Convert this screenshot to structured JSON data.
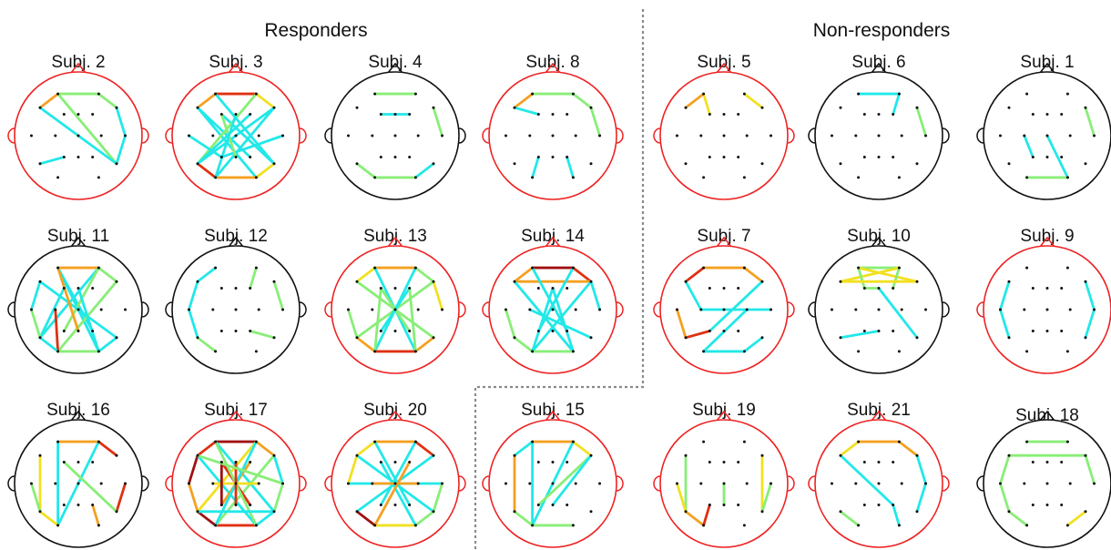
{
  "groups": [
    {
      "title": "Responders"
    },
    {
      "title": "Non-responders"
    }
  ],
  "colors": {
    "red_head": "#ee2222",
    "black_head": "#111111",
    "cyan": "#22e8e8",
    "green": "#88ee77",
    "yellow": "#f2e020",
    "orange": "#f5a020",
    "red": "#e03010",
    "dark_red": "#a01010"
  },
  "electrodes": [
    [
      -0.4,
      -0.82
    ],
    [
      0.4,
      -0.82
    ],
    [
      -0.75,
      -0.55
    ],
    [
      -0.28,
      -0.42
    ],
    [
      0.0,
      -0.42
    ],
    [
      0.28,
      -0.42
    ],
    [
      0.75,
      -0.55
    ],
    [
      -0.92,
      0.0
    ],
    [
      -0.45,
      0.0
    ],
    [
      0.0,
      0.0
    ],
    [
      0.45,
      0.0
    ],
    [
      0.92,
      0.0
    ],
    [
      -0.75,
      0.55
    ],
    [
      -0.28,
      0.42
    ],
    [
      0.0,
      0.42
    ],
    [
      0.28,
      0.42
    ],
    [
      0.75,
      0.55
    ],
    [
      -0.4,
      0.82
    ],
    [
      0.4,
      0.82
    ]
  ],
  "subjects": [
    {
      "label": "Subj. 2",
      "head": "red",
      "edges": [
        [
          0,
          1,
          "green"
        ],
        [
          0,
          2,
          "orange"
        ],
        [
          0,
          16,
          "green"
        ],
        [
          2,
          16,
          "cyan"
        ],
        [
          1,
          6,
          "green"
        ],
        [
          6,
          11,
          "cyan"
        ],
        [
          11,
          16,
          "cyan"
        ],
        [
          12,
          13,
          "cyan"
        ]
      ]
    },
    {
      "label": "Subj. 3",
      "head": "red",
      "edges": [
        [
          0,
          1,
          "red"
        ],
        [
          0,
          2,
          "orange"
        ],
        [
          1,
          6,
          "yellow"
        ],
        [
          2,
          15,
          "cyan"
        ],
        [
          2,
          18,
          "cyan"
        ],
        [
          3,
          16,
          "cyan"
        ],
        [
          6,
          12,
          "cyan"
        ],
        [
          6,
          17,
          "cyan"
        ],
        [
          1,
          12,
          "green"
        ],
        [
          0,
          16,
          "cyan"
        ],
        [
          7,
          13,
          "cyan"
        ],
        [
          11,
          13,
          "cyan"
        ],
        [
          12,
          17,
          "red"
        ],
        [
          16,
          18,
          "yellow"
        ],
        [
          17,
          18,
          "orange"
        ],
        [
          3,
          14,
          "green"
        ],
        [
          5,
          12,
          "cyan"
        ],
        [
          4,
          17,
          "cyan"
        ]
      ]
    },
    {
      "label": "Subj. 4",
      "head": "black",
      "edges": [
        [
          0,
          1,
          "green"
        ],
        [
          3,
          5,
          "cyan"
        ],
        [
          6,
          11,
          "green"
        ],
        [
          12,
          17,
          "green"
        ],
        [
          17,
          18,
          "green"
        ],
        [
          16,
          18,
          "cyan"
        ]
      ]
    },
    {
      "label": "Subj. 8",
      "head": "red",
      "edges": [
        [
          0,
          1,
          "green"
        ],
        [
          0,
          2,
          "orange"
        ],
        [
          2,
          3,
          "cyan"
        ],
        [
          1,
          6,
          "green"
        ],
        [
          6,
          11,
          "green"
        ],
        [
          13,
          17,
          "cyan"
        ],
        [
          15,
          18,
          "cyan"
        ]
      ]
    },
    {
      "label": "Subj. 5",
      "head": "red",
      "edges": [
        [
          0,
          3,
          "yellow"
        ],
        [
          0,
          2,
          "orange"
        ],
        [
          1,
          6,
          "yellow"
        ]
      ]
    },
    {
      "label": "Subj. 6",
      "head": "black",
      "edges": [
        [
          0,
          1,
          "cyan"
        ],
        [
          1,
          5,
          "cyan"
        ],
        [
          6,
          11,
          "green"
        ]
      ]
    },
    {
      "label": "Subj. 1",
      "head": "black",
      "edges": [
        [
          6,
          11,
          "green"
        ],
        [
          8,
          13,
          "cyan"
        ],
        [
          9,
          18,
          "cyan"
        ],
        [
          17,
          18,
          "green"
        ]
      ]
    },
    {
      "label": "Subj. 11",
      "head": "black",
      "edges": [
        [
          0,
          1,
          "orange"
        ],
        [
          0,
          15,
          "cyan"
        ],
        [
          0,
          18,
          "cyan"
        ],
        [
          1,
          12,
          "cyan"
        ],
        [
          1,
          13,
          "green"
        ],
        [
          2,
          16,
          "cyan"
        ],
        [
          3,
          12,
          "cyan"
        ],
        [
          6,
          17,
          "green"
        ],
        [
          7,
          12,
          "green"
        ],
        [
          2,
          7,
          "cyan"
        ],
        [
          8,
          17,
          "red"
        ],
        [
          12,
          17,
          "cyan"
        ],
        [
          17,
          18,
          "green"
        ],
        [
          16,
          18,
          "cyan"
        ],
        [
          1,
          6,
          "green"
        ],
        [
          0,
          14,
          "orange"
        ],
        [
          4,
          18,
          "cyan"
        ]
      ]
    },
    {
      "label": "Subj. 12",
      "head": "black",
      "edges": [
        [
          0,
          2,
          "cyan"
        ],
        [
          2,
          7,
          "cyan"
        ],
        [
          7,
          12,
          "cyan"
        ],
        [
          12,
          17,
          "green"
        ],
        [
          1,
          5,
          "green"
        ],
        [
          6,
          11,
          "green"
        ],
        [
          16,
          15,
          "green"
        ]
      ]
    },
    {
      "label": "Subj. 13",
      "head": "red",
      "edges": [
        [
          0,
          1,
          "orange"
        ],
        [
          0,
          2,
          "yellow"
        ],
        [
          1,
          6,
          "green"
        ],
        [
          6,
          11,
          "yellow"
        ],
        [
          2,
          16,
          "green"
        ],
        [
          6,
          12,
          "green"
        ],
        [
          0,
          18,
          "cyan"
        ],
        [
          1,
          17,
          "cyan"
        ],
        [
          3,
          15,
          "green"
        ],
        [
          5,
          13,
          "cyan"
        ],
        [
          12,
          17,
          "orange"
        ],
        [
          17,
          18,
          "red"
        ],
        [
          16,
          18,
          "orange"
        ],
        [
          7,
          12,
          "green"
        ],
        [
          3,
          17,
          "green"
        ],
        [
          5,
          18,
          "green"
        ]
      ]
    },
    {
      "label": "Subj. 14",
      "head": "red",
      "edges": [
        [
          0,
          1,
          "dark_red"
        ],
        [
          0,
          2,
          "orange"
        ],
        [
          1,
          6,
          "red"
        ],
        [
          2,
          6,
          "orange"
        ],
        [
          0,
          15,
          "cyan"
        ],
        [
          1,
          13,
          "cyan"
        ],
        [
          6,
          17,
          "cyan"
        ],
        [
          2,
          18,
          "cyan"
        ],
        [
          6,
          11,
          "cyan"
        ],
        [
          8,
          16,
          "cyan"
        ],
        [
          12,
          17,
          "green"
        ],
        [
          17,
          18,
          "green"
        ],
        [
          4,
          18,
          "cyan"
        ],
        [
          4,
          17,
          "cyan"
        ],
        [
          7,
          12,
          "green"
        ]
      ]
    },
    {
      "label": "Subj. 7",
      "head": "red",
      "edges": [
        [
          0,
          1,
          "orange"
        ],
        [
          1,
          6,
          "orange"
        ],
        [
          0,
          2,
          "red"
        ],
        [
          2,
          8,
          "cyan"
        ],
        [
          8,
          11,
          "cyan"
        ],
        [
          6,
          13,
          "cyan"
        ],
        [
          10,
          17,
          "cyan"
        ],
        [
          12,
          13,
          "red"
        ],
        [
          7,
          12,
          "orange"
        ],
        [
          16,
          18,
          "cyan"
        ],
        [
          17,
          18,
          "cyan"
        ]
      ]
    },
    {
      "label": "Subj. 10",
      "head": "black",
      "edges": [
        [
          0,
          1,
          "green"
        ],
        [
          0,
          6,
          "yellow"
        ],
        [
          1,
          2,
          "yellow"
        ],
        [
          0,
          3,
          "green"
        ],
        [
          1,
          5,
          "green"
        ],
        [
          2,
          6,
          "yellow"
        ],
        [
          3,
          4,
          "green"
        ],
        [
          4,
          16,
          "cyan"
        ],
        [
          12,
          14,
          "cyan"
        ]
      ]
    },
    {
      "label": "Subj. 9",
      "head": "red",
      "edges": [
        [
          2,
          7,
          "cyan"
        ],
        [
          7,
          12,
          "cyan"
        ],
        [
          6,
          11,
          "cyan"
        ],
        [
          11,
          16,
          "cyan"
        ]
      ]
    },
    {
      "label": "Subj. 16",
      "head": "black",
      "edges": [
        [
          0,
          1,
          "orange"
        ],
        [
          0,
          17,
          "cyan"
        ],
        [
          1,
          17,
          "cyan"
        ],
        [
          1,
          6,
          "red"
        ],
        [
          2,
          12,
          "yellow"
        ],
        [
          7,
          12,
          "green"
        ],
        [
          12,
          17,
          "yellow"
        ],
        [
          16,
          11,
          "red"
        ],
        [
          15,
          18,
          "orange"
        ],
        [
          3,
          16,
          "green"
        ]
      ]
    },
    {
      "label": "Subj. 17",
      "head": "red",
      "edges": [
        [
          0,
          1,
          "dark_red"
        ],
        [
          0,
          2,
          "red"
        ],
        [
          1,
          6,
          "orange"
        ],
        [
          2,
          7,
          "dark_red"
        ],
        [
          6,
          11,
          "cyan"
        ],
        [
          7,
          12,
          "orange"
        ],
        [
          11,
          16,
          "green"
        ],
        [
          12,
          17,
          "dark_red"
        ],
        [
          16,
          18,
          "cyan"
        ],
        [
          17,
          18,
          "red"
        ],
        [
          0,
          16,
          "cyan"
        ],
        [
          1,
          12,
          "yellow"
        ],
        [
          2,
          18,
          "cyan"
        ],
        [
          6,
          17,
          "green"
        ],
        [
          3,
          15,
          "red"
        ],
        [
          5,
          13,
          "orange"
        ],
        [
          0,
          18,
          "green"
        ],
        [
          1,
          17,
          "cyan"
        ],
        [
          8,
          10,
          "yellow"
        ],
        [
          4,
          14,
          "red"
        ],
        [
          3,
          13,
          "dark_red"
        ],
        [
          12,
          16,
          "cyan"
        ],
        [
          2,
          11,
          "green"
        ]
      ]
    },
    {
      "label": "Subj. 20",
      "head": "red",
      "edges": [
        [
          0,
          1,
          "orange"
        ],
        [
          1,
          6,
          "red"
        ],
        [
          0,
          2,
          "yellow"
        ],
        [
          2,
          16,
          "cyan"
        ],
        [
          6,
          12,
          "cyan"
        ],
        [
          0,
          15,
          "cyan"
        ],
        [
          1,
          13,
          "cyan"
        ],
        [
          7,
          11,
          "cyan"
        ],
        [
          12,
          17,
          "dark_red"
        ],
        [
          17,
          18,
          "yellow"
        ],
        [
          16,
          18,
          "green"
        ],
        [
          3,
          18,
          "cyan"
        ],
        [
          5,
          17,
          "orange"
        ],
        [
          8,
          10,
          "orange"
        ],
        [
          11,
          16,
          "green"
        ],
        [
          2,
          7,
          "yellow"
        ]
      ]
    },
    {
      "label": "Subj. 15",
      "head": "red",
      "edges": [
        [
          0,
          1,
          "orange"
        ],
        [
          0,
          2,
          "cyan"
        ],
        [
          0,
          17,
          "cyan"
        ],
        [
          1,
          17,
          "cyan"
        ],
        [
          6,
          13,
          "green"
        ],
        [
          6,
          14,
          "cyan"
        ],
        [
          2,
          12,
          "orange"
        ],
        [
          12,
          17,
          "green"
        ],
        [
          17,
          18,
          "green"
        ],
        [
          1,
          6,
          "yellow"
        ]
      ]
    },
    {
      "label": "Subj. 19",
      "head": "red",
      "edges": [
        [
          2,
          12,
          "green"
        ],
        [
          12,
          17,
          "orange"
        ],
        [
          7,
          12,
          "yellow"
        ],
        [
          6,
          16,
          "yellow"
        ],
        [
          11,
          16,
          "green"
        ],
        [
          9,
          14,
          "green"
        ],
        [
          13,
          17,
          "red"
        ]
      ]
    },
    {
      "label": "Subj. 21",
      "head": "red",
      "edges": [
        [
          0,
          1,
          "orange"
        ],
        [
          1,
          6,
          "orange"
        ],
        [
          0,
          2,
          "yellow"
        ],
        [
          2,
          15,
          "cyan"
        ],
        [
          6,
          11,
          "cyan"
        ],
        [
          11,
          16,
          "cyan"
        ],
        [
          15,
          18,
          "cyan"
        ],
        [
          12,
          17,
          "green"
        ]
      ]
    },
    {
      "label": "Subj. 18",
      "head": "black",
      "edges": [
        [
          0,
          1,
          "green"
        ],
        [
          2,
          6,
          "green"
        ],
        [
          2,
          7,
          "green"
        ],
        [
          6,
          11,
          "green"
        ],
        [
          12,
          17,
          "green"
        ],
        [
          16,
          18,
          "yellow"
        ],
        [
          7,
          12,
          "green"
        ]
      ]
    }
  ]
}
